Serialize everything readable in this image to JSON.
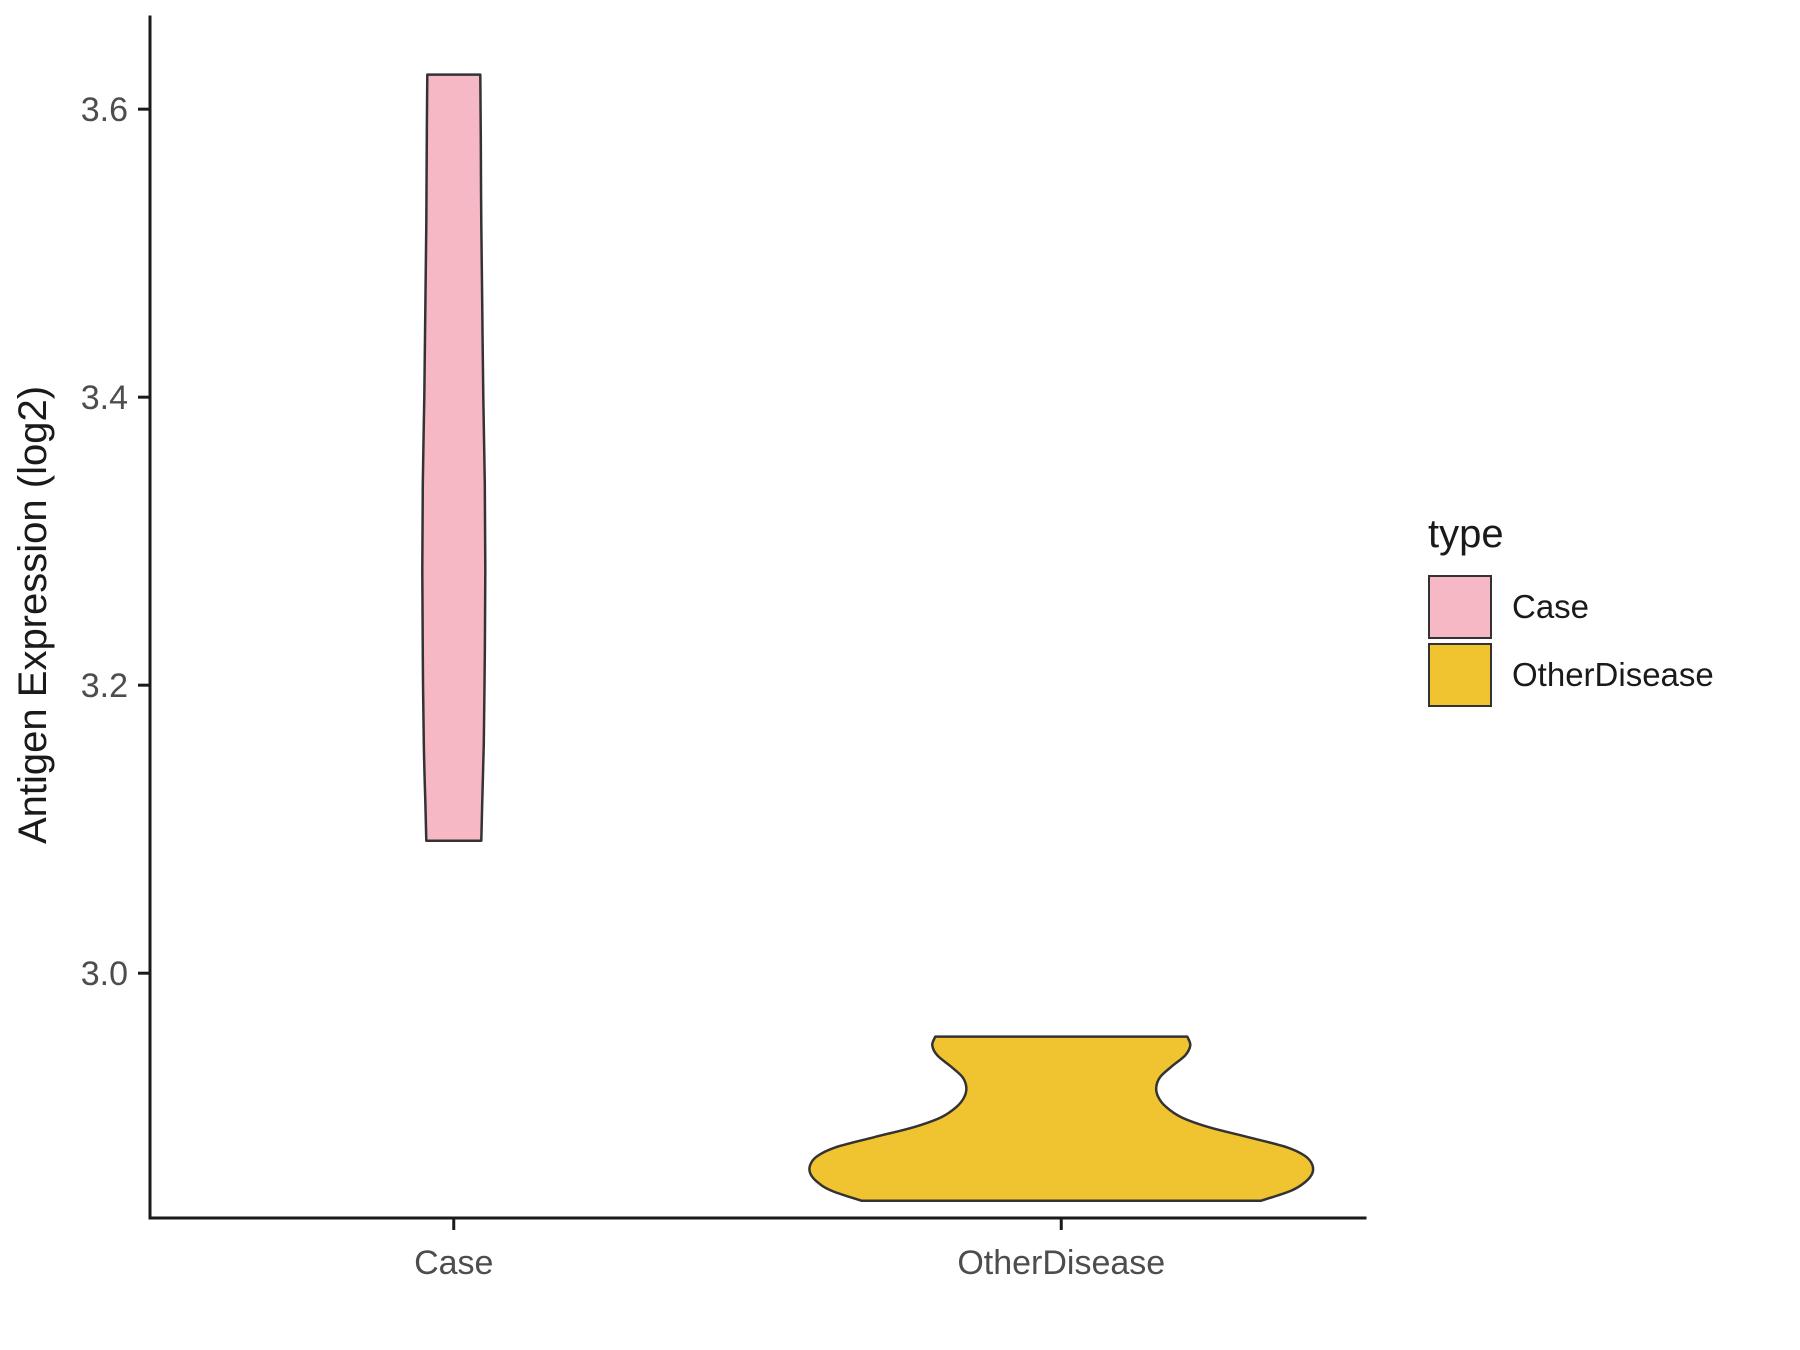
{
  "chart_data": {
    "type": "violin",
    "title": "",
    "xlabel": "",
    "ylabel": "Antigen Expression (log2)",
    "categories": [
      "Case",
      "OtherDisease"
    ],
    "ylim": [
      2.83,
      3.664
    ],
    "yticks": [
      {
        "value": 3.0,
        "label": "3.0"
      },
      {
        "value": 3.2,
        "label": "3.2"
      },
      {
        "value": 3.4,
        "label": "3.4"
      },
      {
        "value": 3.6,
        "label": "3.6"
      }
    ],
    "grid": false,
    "legend": {
      "title": "type",
      "position": "right",
      "items": [
        {
          "label": "Case",
          "color": "#F7B8C6"
        },
        {
          "label": "OtherDisease",
          "color": "#F0C430"
        }
      ]
    },
    "series": [
      {
        "name": "Case",
        "color": "#F7B8C6",
        "value_range": [
          3.092,
          3.624
        ],
        "profile": [
          [
            3.624,
            26.5
          ],
          [
            3.58,
            27.0
          ],
          [
            3.52,
            27.5
          ],
          [
            3.46,
            28.5
          ],
          [
            3.4,
            29.5
          ],
          [
            3.34,
            31.0
          ],
          [
            3.28,
            31.5
          ],
          [
            3.22,
            31.0
          ],
          [
            3.16,
            30.0
          ],
          [
            3.12,
            28.5
          ],
          [
            3.092,
            27.5
          ]
        ]
      },
      {
        "name": "OtherDisease",
        "color": "#F0C430",
        "value_range": [
          2.842,
          2.956
        ],
        "profile": [
          [
            2.956,
            126
          ],
          [
            2.95,
            129
          ],
          [
            2.943,
            124
          ],
          [
            2.935,
            110
          ],
          [
            2.928,
            99
          ],
          [
            2.921,
            95
          ],
          [
            2.914,
            97
          ],
          [
            2.907,
            105
          ],
          [
            2.9,
            120
          ],
          [
            2.893,
            148
          ],
          [
            2.886,
            188
          ],
          [
            2.879,
            226
          ],
          [
            2.873,
            244
          ],
          [
            2.867,
            251
          ],
          [
            2.861,
            251
          ],
          [
            2.855,
            244
          ],
          [
            2.849,
            230
          ],
          [
            2.842,
            200
          ]
        ]
      }
    ],
    "style": {
      "violin_stroke": "#333333",
      "axis_color": "#1a1a1a",
      "tick_label_color": "#4d4d4d"
    }
  }
}
